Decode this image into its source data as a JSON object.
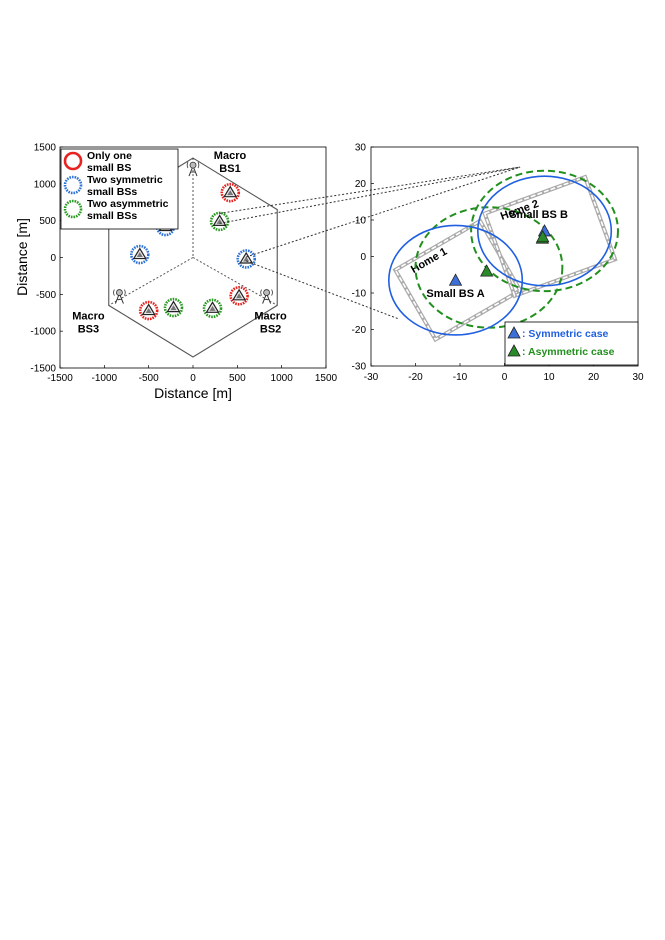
{
  "chart_data": [
    {
      "type": "scatter",
      "panel": "left",
      "xlabel": "Distance [m]",
      "ylabel": "Distance [m]",
      "xlim": [
        -1500,
        1500
      ],
      "ylim": [
        -1500,
        1500
      ],
      "xticks": [
        -1500,
        -1000,
        -500,
        0,
        500,
        1000,
        1500
      ],
      "yticks": [
        1500,
        1000,
        500,
        0,
        -500,
        -1000,
        -1500
      ],
      "hexagon_vertices": [
        [
          0,
          1350
        ],
        [
          950,
          650
        ],
        [
          950,
          -650
        ],
        [
          0,
          -1350
        ],
        [
          -950,
          -650
        ],
        [
          -950,
          650
        ]
      ],
      "sector_lines": [
        [
          [
            0,
            1350
          ],
          [
            0,
            0
          ]
        ],
        [
          [
            0,
            0
          ],
          [
            950,
            -650
          ]
        ],
        [
          [
            0,
            0
          ],
          [
            -950,
            -650
          ]
        ]
      ],
      "macro_bs": [
        {
          "label_line1": "Macro",
          "label_line2": "BS1",
          "x": 0,
          "y": 1200,
          "label_position": "right-top"
        },
        {
          "label_line1": "Macro",
          "label_line2": "BS2",
          "x": 830,
          "y": -530,
          "label_position": "bottom"
        },
        {
          "label_line1": "Macro",
          "label_line2": "BS3",
          "x": -830,
          "y": -530,
          "label_position": "bottom"
        }
      ],
      "legend": [
        {
          "label_line1": "Only one",
          "label_line2": "small BS",
          "color": "#e8231f"
        },
        {
          "label_line1": "Two symmetric",
          "label_line2": "small BSs",
          "color": "#2f73d6"
        },
        {
          "label_line1": "Two asymmetric",
          "label_line2": "small BSs",
          "color": "#2a9a22"
        }
      ],
      "small_bs": [
        {
          "x": 420,
          "y": 880,
          "group": "red"
        },
        {
          "x": 300,
          "y": 490,
          "group": "green"
        },
        {
          "x": -310,
          "y": 420,
          "group": "blue"
        },
        {
          "x": -600,
          "y": 40,
          "group": "blue"
        },
        {
          "x": 600,
          "y": -20,
          "group": "blue"
        },
        {
          "x": 520,
          "y": -520,
          "group": "red"
        },
        {
          "x": 220,
          "y": -690,
          "group": "green"
        },
        {
          "x": -220,
          "y": -680,
          "group": "green"
        },
        {
          "x": -500,
          "y": -720,
          "group": "red"
        }
      ]
    },
    {
      "type": "scatter",
      "panel": "right",
      "xlim": [
        -30,
        30
      ],
      "ylim": [
        -30,
        30
      ],
      "xticks": [
        -30,
        -20,
        -10,
        0,
        10,
        20,
        30
      ],
      "yticks": [
        30,
        20,
        10,
        0,
        -10,
        -20,
        -30
      ],
      "homes": [
        {
          "label": "Home 1",
          "center": [
            -10.5,
            -6.5
          ],
          "size": 22,
          "angle_deg": 30
        },
        {
          "label": "Home 2",
          "center": [
            10.2,
            5.5
          ],
          "size": 24,
          "angle_deg": 20
        }
      ],
      "symmetric_circles": [
        {
          "center": [
            -11,
            -6.5
          ],
          "radius": 15
        },
        {
          "center": [
            9,
            7
          ],
          "radius": 15
        }
      ],
      "asymmetric_circles": [
        {
          "center": [
            -3.5,
            -3
          ],
          "radius": 16.5
        },
        {
          "center": [
            9,
            7
          ],
          "radius": 16.5
        }
      ],
      "symmetric_points": [
        {
          "label": "Small BS A",
          "x": -11,
          "y": -6.5
        },
        {
          "label": "Small BS B",
          "x": 9,
          "y": 7
        }
      ],
      "asymmetric_points": [
        {
          "x": -4,
          "y": -4
        },
        {
          "x": 8.5,
          "y": 5
        }
      ],
      "legend": [
        {
          "label": ": Symmetric case",
          "color": "#1f5fe0",
          "marker_color": "#3c6fd8"
        },
        {
          "label": ": Asymmetric case",
          "color": "#22901e",
          "marker_color": "#2a8a2a"
        }
      ]
    }
  ]
}
